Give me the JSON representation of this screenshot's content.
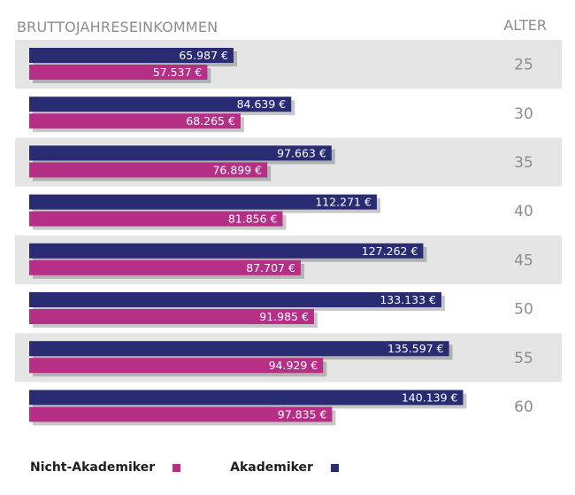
{
  "header": {
    "left_title": "BRUTTOJAHRESEINKOMMEN",
    "right_title": "ALTER"
  },
  "colors": {
    "akademiker": "#2a2c73",
    "nicht_akademiker": "#b62f87",
    "row_shade": "#e5e5e5",
    "age_text": "#8c8c8c"
  },
  "chart_data": {
    "type": "bar",
    "orientation": "horizontal",
    "title": "BRUTTOJAHRESEINKOMMEN",
    "ylabel": "ALTER",
    "categories": [
      "25",
      "30",
      "35",
      "40",
      "45",
      "50",
      "55",
      "60"
    ],
    "series": [
      {
        "name": "Akademiker",
        "values": [
          65987,
          84639,
          97663,
          112271,
          127262,
          133133,
          135597,
          140139
        ],
        "labels": [
          "65.987 €",
          "84.639 €",
          "97.663 €",
          "112.271 €",
          "127.262 €",
          "133.133 €",
          "135.597 €",
          "140.139 €"
        ]
      },
      {
        "name": "Nicht-Akademiker",
        "values": [
          57537,
          68265,
          76899,
          81856,
          87707,
          91985,
          94929,
          97835
        ],
        "labels": [
          "57.537 €",
          "68.265 €",
          "76.899 €",
          "81.856 €",
          "87.707 €",
          "91.985 €",
          "94.929 €",
          "97.835 €"
        ]
      }
    ],
    "legend_position": "bottom-left"
  },
  "legend": {
    "items": [
      {
        "label": "Nicht-Akademiker"
      },
      {
        "label": "Akademiker"
      }
    ]
  }
}
